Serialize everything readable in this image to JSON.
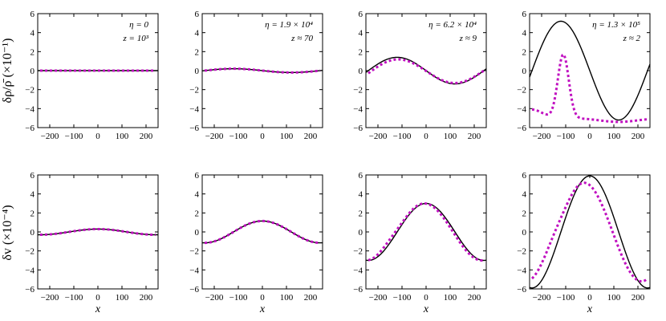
{
  "figure": {
    "row_ylabels": [
      "δρ/ρ̄ (×10⁻¹)",
      "δv (×10⁻⁴)"
    ],
    "xlabel": "x"
  },
  "colors": {
    "exact": "#000000",
    "approx": "#c010c0"
  },
  "chart_data": [
    {
      "type": "line",
      "row": 0,
      "col": 0,
      "annotation": [
        "η = 0",
        "z = 10³"
      ],
      "xlim": [
        -250,
        250
      ],
      "ylim": [
        -6,
        6
      ],
      "xticks": [
        -200,
        -100,
        0,
        100,
        200
      ],
      "yticks": [
        -6,
        -4,
        -2,
        0,
        2,
        4,
        6
      ],
      "curve": {
        "kind": "density",
        "amplitude_exact": 0.0,
        "amplitude_approx": 0.0
      }
    },
    {
      "type": "line",
      "row": 0,
      "col": 1,
      "annotation": [
        "η = 1.9 × 10⁴",
        "z ≈ 70"
      ],
      "xlim": [
        -250,
        250
      ],
      "ylim": [
        -6,
        6
      ],
      "xticks": [
        -200,
        -100,
        0,
        100,
        200
      ],
      "yticks": [
        -6,
        -4,
        -2,
        0,
        2,
        4,
        6
      ],
      "curve": {
        "kind": "density",
        "amplitude_exact": 0.2,
        "amplitude_approx": 0.2
      }
    },
    {
      "type": "line",
      "row": 0,
      "col": 2,
      "annotation": [
        "η = 6.2 × 10⁴",
        "z ≈ 9"
      ],
      "xlim": [
        -250,
        250
      ],
      "ylim": [
        -6,
        6
      ],
      "xticks": [
        -200,
        -100,
        0,
        100,
        200
      ],
      "yticks": [
        -6,
        -4,
        -2,
        0,
        2,
        4,
        6
      ],
      "curve": {
        "kind": "density",
        "amplitude_exact": 1.4,
        "approx_peak": 1.25,
        "approx_trough": -1.4,
        "approx_edge": -0.5
      }
    },
    {
      "type": "line",
      "row": 0,
      "col": 3,
      "annotation": [
        "η = 1.3 × 10⁵",
        "z ≈ 2"
      ],
      "xlim": [
        -250,
        250
      ],
      "ylim": [
        -6,
        6
      ],
      "xticks": [
        -200,
        -100,
        0,
        100,
        200
      ],
      "yticks": [
        -6,
        -4,
        -2,
        0,
        2,
        4,
        6
      ],
      "curve": {
        "kind": "density-nonlinear",
        "amplitude_exact": 5.2,
        "approx_peak": 1.3,
        "approx_min": -5.4,
        "approx_left_edge": -4.5
      }
    },
    {
      "type": "line",
      "row": 1,
      "col": 0,
      "annotation": [],
      "xlim": [
        -250,
        250
      ],
      "ylim": [
        -6,
        6
      ],
      "xticks": [
        -200,
        -100,
        0,
        100,
        200
      ],
      "yticks": [
        -6,
        -4,
        -2,
        0,
        2,
        4,
        6
      ],
      "curve": {
        "kind": "velocity",
        "amplitude_exact": 0.3,
        "amplitude_approx": 0.3
      }
    },
    {
      "type": "line",
      "row": 1,
      "col": 1,
      "annotation": [],
      "xlim": [
        -250,
        250
      ],
      "ylim": [
        -6,
        6
      ],
      "xticks": [
        -200,
        -100,
        0,
        100,
        200
      ],
      "yticks": [
        -6,
        -4,
        -2,
        0,
        2,
        4,
        6
      ],
      "curve": {
        "kind": "velocity",
        "amplitude_exact": 1.15,
        "amplitude_approx": 1.15
      }
    },
    {
      "type": "line",
      "row": 1,
      "col": 2,
      "annotation": [],
      "xlim": [
        -250,
        250
      ],
      "ylim": [
        -6,
        6
      ],
      "xticks": [
        -200,
        -100,
        0,
        100,
        200
      ],
      "yticks": [
        -6,
        -4,
        -2,
        0,
        2,
        4,
        6
      ],
      "curve": {
        "kind": "velocity",
        "amplitude_exact": 3.0,
        "amplitude_approx": 3.0,
        "approx_shift": -8
      }
    },
    {
      "type": "line",
      "row": 1,
      "col": 3,
      "annotation": [],
      "xlim": [
        -250,
        250
      ],
      "ylim": [
        -6,
        6
      ],
      "xticks": [
        -200,
        -100,
        0,
        100,
        200
      ],
      "yticks": [
        -6,
        -4,
        -2,
        0,
        2,
        4,
        6
      ],
      "curve": {
        "kind": "velocity",
        "amplitude_exact": 5.9,
        "amplitude_approx": 5.2,
        "approx_shift": -25
      }
    }
  ]
}
